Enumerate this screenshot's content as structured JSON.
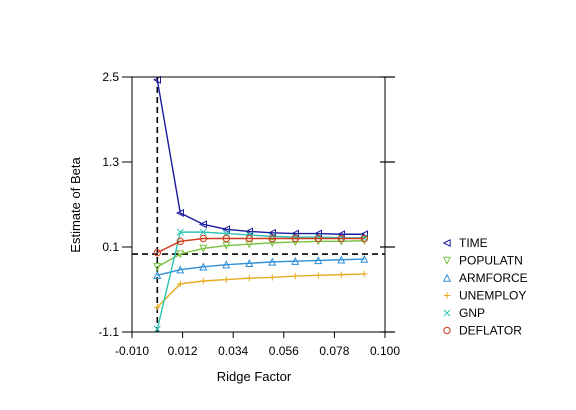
{
  "chart_data": {
    "type": "line",
    "title": "",
    "xlabel": "Ridge Factor",
    "ylabel": "Estimate of Beta",
    "xlim": [
      -0.01,
      0.1
    ],
    "ylim": [
      -1.1,
      2.5
    ],
    "xticks": [
      "-0.010",
      "0.012",
      "0.034",
      "0.056",
      "0.078",
      "0.100"
    ],
    "yticks": [
      "-1.1",
      "0.1",
      "1.3",
      "2.5"
    ],
    "grid": false,
    "legend_position": "right",
    "reference_lines": {
      "vertical_x": 0.001,
      "horizontal_y": 0.0
    },
    "x": [
      0.001,
      0.011,
      0.021,
      0.031,
      0.041,
      0.051,
      0.061,
      0.071,
      0.081,
      0.091
    ],
    "series": [
      {
        "name": "TIME",
        "marker": "triangle-left",
        "color": "#1a1a9e",
        "values": [
          2.46,
          0.58,
          0.42,
          0.35,
          0.32,
          0.3,
          0.29,
          0.29,
          0.28,
          0.28
        ]
      },
      {
        "name": "POPULATN",
        "marker": "triangle-down",
        "color": "#7ac142",
        "values": [
          -0.18,
          0.0,
          0.08,
          0.12,
          0.14,
          0.16,
          0.17,
          0.18,
          0.18,
          0.19
        ]
      },
      {
        "name": "ARMFORCE",
        "marker": "triangle-up",
        "color": "#2f8fd8",
        "values": [
          -0.3,
          -0.22,
          -0.18,
          -0.15,
          -0.13,
          -0.11,
          -0.1,
          -0.09,
          -0.08,
          -0.07
        ]
      },
      {
        "name": "UNEMPLOY",
        "marker": "plus",
        "color": "#e5ac1e",
        "values": [
          -0.75,
          -0.42,
          -0.38,
          -0.36,
          -0.34,
          -0.33,
          -0.31,
          -0.3,
          -0.29,
          -0.28
        ]
      },
      {
        "name": "GNP",
        "marker": "cross",
        "color": "#2bc4b4",
        "values": [
          -1.06,
          0.31,
          0.31,
          0.29,
          0.27,
          0.25,
          0.24,
          0.24,
          0.23,
          0.23
        ]
      },
      {
        "name": "DEFLATOR",
        "marker": "circle",
        "color": "#d03a1a",
        "values": [
          0.02,
          0.18,
          0.22,
          0.22,
          0.22,
          0.22,
          0.22,
          0.22,
          0.22,
          0.22
        ]
      }
    ]
  }
}
